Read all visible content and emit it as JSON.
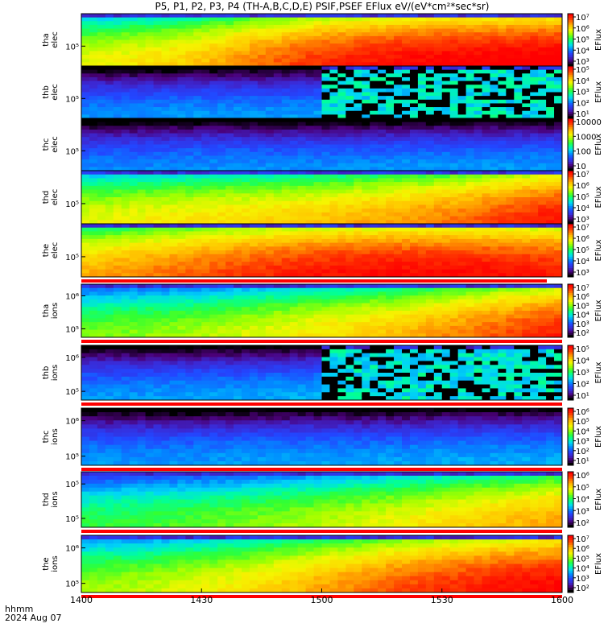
{
  "title": "P5, P1, P2, P3, P4 (TH-A,B,C,D,E) PSIF,PSEF EFlux eV/(eV*cm²*sec*sr)",
  "time_axis": {
    "ticks": [
      "1400",
      "1430",
      "1500",
      "1530",
      "1600"
    ],
    "label_line1": "hhmm",
    "label_line2": "2024 Aug 07"
  },
  "colors": {
    "colormap": [
      "#000000",
      "#4b0078",
      "#3c28d2",
      "#2346ff",
      "#008cff",
      "#00d7f5",
      "#00ff9b",
      "#32ff32",
      "#a0ff00",
      "#f5f500",
      "#ffc800",
      "#ff8200",
      "#ff3200",
      "#ff0000"
    ],
    "flag_red": "#ff0000",
    "grid": "#000000"
  },
  "chart_data": [
    {
      "type": "heatmap",
      "name": "tha elec",
      "ylabel_line1": "tha",
      "ylabel_line2": "elec",
      "y_ticks": [
        "10⁵"
      ],
      "colorbar_ticks": [
        "10⁷",
        "10⁶",
        "10⁵",
        "10⁴",
        "10³"
      ],
      "colorbar_label": "EFlux",
      "flag_bar": false,
      "intensity_profile": [
        0.62,
        0.66,
        0.7,
        0.78,
        0.85,
        0.9,
        0.93,
        0.95,
        0.96,
        0.97
      ]
    },
    {
      "type": "heatmap",
      "name": "thb elec",
      "ylabel_line1": "thb",
      "ylabel_line2": "elec",
      "y_ticks": [
        "10⁵"
      ],
      "colorbar_ticks": [
        "10⁵",
        "10⁴",
        "10³",
        "10²",
        "10¹"
      ],
      "colorbar_label": "EFlux",
      "flag_bar": false,
      "noise_after": "1500",
      "intensity_profile": [
        0.25,
        0.25,
        0.26,
        0.26,
        0.26,
        0.28,
        0.3,
        0.32,
        0.32,
        0.32
      ]
    },
    {
      "type": "heatmap",
      "name": "thc elec",
      "ylabel_line1": "thc",
      "ylabel_line2": "elec",
      "y_ticks": [
        "10⁵"
      ],
      "colorbar_ticks": [
        "10000",
        "1000",
        "100",
        "10"
      ],
      "colorbar_label": "EFlux",
      "flag_bar": false,
      "intensity_profile": [
        0.24,
        0.24,
        0.25,
        0.25,
        0.25,
        0.25,
        0.26,
        0.26,
        0.26,
        0.26
      ]
    },
    {
      "type": "heatmap",
      "name": "thd elec",
      "ylabel_line1": "thd",
      "ylabel_line2": "elec",
      "y_ticks": [
        "10⁵"
      ],
      "colorbar_ticks": [
        "10⁷",
        "10⁶",
        "10⁵",
        "10⁴",
        "10³"
      ],
      "colorbar_label": "EFlux",
      "flag_bar": false,
      "intensity_profile": [
        0.62,
        0.64,
        0.66,
        0.68,
        0.7,
        0.73,
        0.76,
        0.8,
        0.86,
        0.92
      ]
    },
    {
      "type": "heatmap",
      "name": "the elec",
      "ylabel_line1": "the",
      "ylabel_line2": "elec",
      "y_ticks": [
        "10⁵"
      ],
      "colorbar_ticks": [
        "10⁷",
        "10⁶",
        "10⁵",
        "10⁴",
        "10³"
      ],
      "colorbar_label": "EFlux",
      "flag_bar": true,
      "intensity_profile": [
        0.74,
        0.78,
        0.82,
        0.86,
        0.9,
        0.92,
        0.93,
        0.93,
        0.92,
        0.9
      ]
    },
    {
      "type": "heatmap",
      "name": "tha ions",
      "ylabel_line1": "tha",
      "ylabel_line2": "ions",
      "y_ticks": [
        "10⁶",
        "10⁵"
      ],
      "colorbar_ticks": [
        "10⁷",
        "10⁶",
        "10⁵",
        "10⁴",
        "10³",
        "10²"
      ],
      "colorbar_label": "EFlux",
      "flag_bar": true,
      "intensity_profile": [
        0.52,
        0.54,
        0.56,
        0.6,
        0.64,
        0.68,
        0.72,
        0.78,
        0.84,
        0.9
      ]
    },
    {
      "type": "heatmap",
      "name": "thb ions",
      "ylabel_line1": "thb",
      "ylabel_line2": "ions",
      "y_ticks": [
        "10⁶",
        "10⁵"
      ],
      "colorbar_ticks": [
        "10⁵",
        "10⁴",
        "10³",
        "10²",
        "10¹"
      ],
      "colorbar_label": "EFlux",
      "flag_bar": true,
      "noise_after": "1500",
      "intensity_profile": [
        0.26,
        0.26,
        0.27,
        0.27,
        0.28,
        0.3,
        0.32,
        0.32,
        0.33,
        0.33
      ]
    },
    {
      "type": "heatmap",
      "name": "thc ions",
      "ylabel_line1": "thc",
      "ylabel_line2": "ions",
      "y_ticks": [
        "10⁶",
        "10⁵"
      ],
      "colorbar_ticks": [
        "10⁶",
        "10⁵",
        "10⁴",
        "10³",
        "10²",
        "10¹"
      ],
      "colorbar_label": "EFlux",
      "flag_bar": true,
      "intensity_profile": [
        0.26,
        0.26,
        0.26,
        0.27,
        0.27,
        0.27,
        0.27,
        0.28,
        0.28,
        0.28
      ]
    },
    {
      "type": "heatmap",
      "name": "thd ions",
      "ylabel_line1": "thd",
      "ylabel_line2": "ions",
      "y_ticks": [
        "10⁵",
        "10⁵"
      ],
      "colorbar_ticks": [
        "10⁶",
        "10⁵",
        "10⁴",
        "10³",
        "10²"
      ],
      "colorbar_label": "EFlux",
      "flag_bar": true,
      "intensity_profile": [
        0.46,
        0.48,
        0.5,
        0.53,
        0.56,
        0.6,
        0.64,
        0.68,
        0.72,
        0.76
      ]
    },
    {
      "type": "heatmap",
      "name": "the ions",
      "ylabel_line1": "the",
      "ylabel_line2": "ions",
      "y_ticks": [
        "10⁶",
        "10⁵"
      ],
      "colorbar_ticks": [
        "10⁷",
        "10⁶",
        "10⁵",
        "10⁴",
        "10³",
        "10²"
      ],
      "colorbar_label": "EFlux",
      "flag_bar": true,
      "intensity_profile": [
        0.56,
        0.58,
        0.62,
        0.66,
        0.72,
        0.78,
        0.84,
        0.88,
        0.92,
        0.94
      ]
    }
  ]
}
